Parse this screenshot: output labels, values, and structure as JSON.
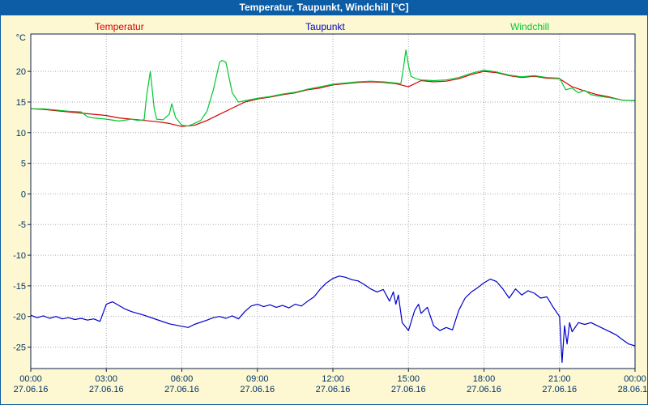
{
  "window": {
    "title": "Temperatur, Taupunkt, Windchill [°C]"
  },
  "colors": {
    "titlebar_bg": "#0c5da5",
    "titlebar_text": "#ffffff",
    "background": "#fdf8d2",
    "plot_bg": "#ffffff",
    "grid": "#a8aab0",
    "axis_text": "#003366",
    "border": "#0d1f4d"
  },
  "chart_data": {
    "type": "line",
    "title": "Temperatur, Taupunkt, Windchill [°C]",
    "ylabel_unit": "°C",
    "xlim": [
      0,
      24
    ],
    "ylim": [
      -28.5,
      26.1
    ],
    "yticks": [
      -25,
      -20,
      -15,
      -10,
      -5,
      0,
      5,
      10,
      15,
      20
    ],
    "xticks": [
      {
        "h": 0,
        "time": "00:00",
        "date": "27.06.16"
      },
      {
        "h": 3,
        "time": "03:00",
        "date": "27.06.16"
      },
      {
        "h": 6,
        "time": "06:00",
        "date": "27.06.16"
      },
      {
        "h": 9,
        "time": "09:00",
        "date": "27.06.16"
      },
      {
        "h": 12,
        "time": "12:00",
        "date": "27.06.16"
      },
      {
        "h": 15,
        "time": "15:00",
        "date": "27.06.16"
      },
      {
        "h": 18,
        "time": "18:00",
        "date": "27.06.16"
      },
      {
        "h": 21,
        "time": "21:00",
        "date": "27.06.16"
      },
      {
        "h": 24,
        "time": "00:00",
        "date": "28.06.16"
      }
    ],
    "grid": true,
    "legend_position": "top",
    "series": [
      {
        "name": "Temperatur",
        "color": "#d40000",
        "x": [
          0,
          0.5,
          1,
          1.5,
          2,
          2.5,
          3,
          3.5,
          4,
          4.5,
          5,
          5.5,
          6,
          6.5,
          7,
          7.5,
          8,
          8.5,
          9,
          9.5,
          10,
          10.5,
          11,
          11.5,
          12,
          12.5,
          13,
          13.5,
          14,
          14.5,
          15,
          15.5,
          16,
          16.5,
          17,
          17.5,
          18,
          18.5,
          19,
          19.5,
          20,
          20.5,
          21,
          21.5,
          22,
          22.5,
          23,
          23.5,
          24
        ],
        "y": [
          13.9,
          13.8,
          13.6,
          13.4,
          13.2,
          13.0,
          12.8,
          12.4,
          12.2,
          12.0,
          11.8,
          11.5,
          11.0,
          11.2,
          12.0,
          13.0,
          14.0,
          15.0,
          15.5,
          15.8,
          16.2,
          16.5,
          17.0,
          17.3,
          17.8,
          18.0,
          18.2,
          18.3,
          18.2,
          18.0,
          17.5,
          18.5,
          18.3,
          18.4,
          18.8,
          19.5,
          20.0,
          19.8,
          19.3,
          19.0,
          19.2,
          18.9,
          18.8,
          17.5,
          16.8,
          16.2,
          15.8,
          15.3,
          15.2
        ]
      },
      {
        "name": "Taupunkt",
        "color": "#0000c8",
        "x": [
          0,
          0.25,
          0.5,
          0.75,
          1,
          1.25,
          1.5,
          1.75,
          2,
          2.25,
          2.5,
          2.75,
          3,
          3.25,
          3.5,
          3.75,
          4,
          4.5,
          5,
          5.5,
          6,
          6.25,
          6.5,
          7,
          7.25,
          7.5,
          7.75,
          8,
          8.25,
          8.5,
          8.75,
          9,
          9.25,
          9.5,
          9.75,
          10,
          10.25,
          10.5,
          10.75,
          11,
          11.25,
          11.5,
          11.75,
          12,
          12.25,
          12.5,
          12.75,
          13,
          13.25,
          13.5,
          13.75,
          14,
          14.25,
          14.4,
          14.5,
          14.6,
          14.75,
          15,
          15.25,
          15.4,
          15.5,
          15.75,
          16,
          16.25,
          16.5,
          16.75,
          17,
          17.25,
          17.5,
          17.75,
          18,
          18.25,
          18.5,
          18.75,
          19,
          19.25,
          19.5,
          19.75,
          20,
          20.25,
          20.5,
          20.75,
          21,
          21.1,
          21.2,
          21.3,
          21.4,
          21.5,
          21.75,
          22,
          22.25,
          22.5,
          22.75,
          23,
          23.25,
          23.5,
          23.75,
          24
        ],
        "y": [
          -19.8,
          -20.2,
          -19.9,
          -20.3,
          -20.0,
          -20.4,
          -20.2,
          -20.5,
          -20.3,
          -20.6,
          -20.4,
          -20.8,
          -18.0,
          -17.6,
          -18.2,
          -18.8,
          -19.2,
          -19.8,
          -20.5,
          -21.2,
          -21.6,
          -21.8,
          -21.3,
          -20.6,
          -20.2,
          -20.0,
          -20.3,
          -19.9,
          -20.4,
          -19.2,
          -18.3,
          -18.0,
          -18.4,
          -18.1,
          -18.5,
          -18.2,
          -18.6,
          -18.0,
          -18.3,
          -17.5,
          -16.8,
          -15.5,
          -14.5,
          -13.8,
          -13.4,
          -13.6,
          -14.0,
          -14.2,
          -14.8,
          -15.5,
          -16.0,
          -15.6,
          -17.5,
          -16.0,
          -18.0,
          -16.5,
          -21.0,
          -22.3,
          -19.0,
          -18.0,
          -19.5,
          -18.5,
          -21.5,
          -22.3,
          -21.8,
          -22.2,
          -19.0,
          -17.0,
          -16.0,
          -15.3,
          -14.5,
          -13.9,
          -14.3,
          -15.5,
          -17.0,
          -15.5,
          -16.5,
          -15.8,
          -16.2,
          -17.0,
          -16.8,
          -18.5,
          -20.0,
          -27.5,
          -21.5,
          -24.5,
          -21.0,
          -22.5,
          -21.0,
          -21.3,
          -21.0,
          -21.5,
          -22.0,
          -22.5,
          -23.0,
          -23.8,
          -24.5,
          -24.8
        ]
      },
      {
        "name": "Windchill",
        "color": "#00c832",
        "x": [
          0,
          0.5,
          1,
          1.5,
          2,
          2.25,
          2.5,
          3,
          3.5,
          4,
          4.25,
          4.5,
          4.6,
          4.75,
          4.9,
          5,
          5.25,
          5.5,
          5.6,
          5.75,
          6,
          6.25,
          6.5,
          6.75,
          7,
          7.25,
          7.5,
          7.6,
          7.75,
          8,
          8.25,
          8.5,
          9,
          9.5,
          10,
          10.5,
          11,
          11.5,
          12,
          12.5,
          13,
          13.5,
          14,
          14.5,
          14.7,
          14.8,
          14.9,
          15,
          15.1,
          15.3,
          15.5,
          16,
          16.5,
          17,
          17.5,
          18,
          18.5,
          19,
          19.5,
          20,
          20.5,
          21,
          21.25,
          21.5,
          21.75,
          22,
          22.25,
          22.5,
          23,
          23.5,
          24
        ],
        "y": [
          13.9,
          13.9,
          13.7,
          13.5,
          13.4,
          12.6,
          12.4,
          12.2,
          11.9,
          12.2,
          12.0,
          12.1,
          16.0,
          20.0,
          14.0,
          12.2,
          12.1,
          13.0,
          14.7,
          12.5,
          11.2,
          11.1,
          11.5,
          12.0,
          13.5,
          17.0,
          21.5,
          21.8,
          21.5,
          16.5,
          15.0,
          15.2,
          15.6,
          15.9,
          16.3,
          16.6,
          17.1,
          17.5,
          17.9,
          18.1,
          18.3,
          18.4,
          18.3,
          18.1,
          18.0,
          20.5,
          23.5,
          21.0,
          19.2,
          18.8,
          18.6,
          18.5,
          18.6,
          19.0,
          19.7,
          20.2,
          19.9,
          19.4,
          19.1,
          19.3,
          19.0,
          18.9,
          17.0,
          17.3,
          16.5,
          16.9,
          16.2,
          16.0,
          15.7,
          15.3,
          15.2
        ]
      }
    ]
  }
}
